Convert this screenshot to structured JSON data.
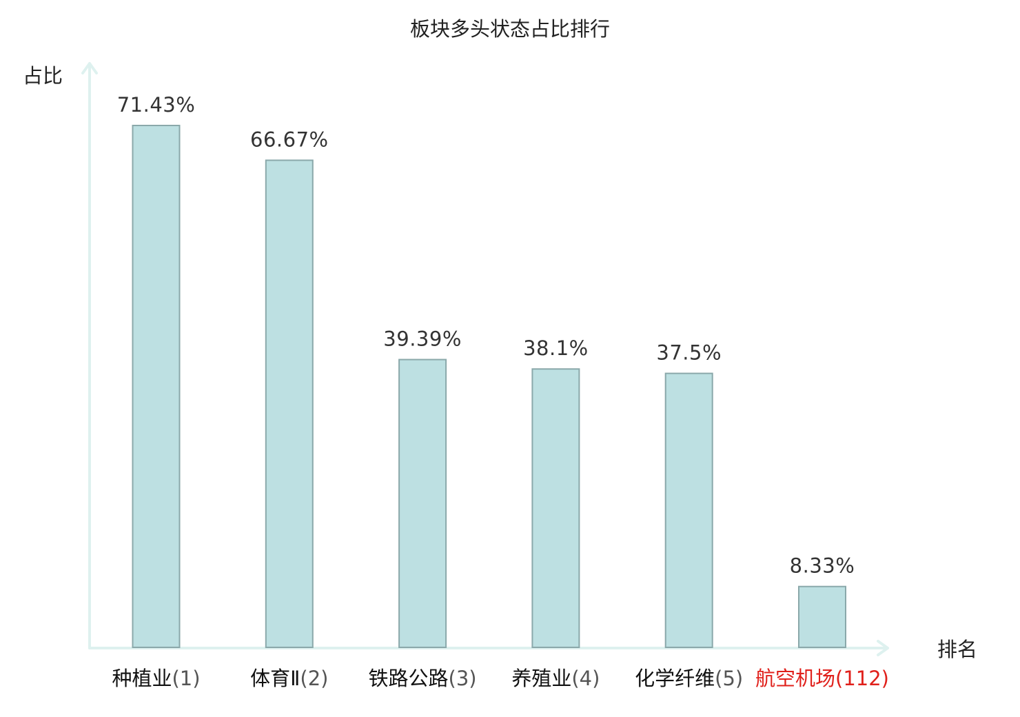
{
  "chart_data": {
    "type": "bar",
    "title": "板块多头状态占比排行",
    "ylabel": "占比",
    "xlabel": "排名",
    "categories": [
      {
        "name": "种植业",
        "rank": "(1)",
        "highlight": false
      },
      {
        "name": "体育Ⅱ",
        "rank": "(2)",
        "highlight": false
      },
      {
        "name": "铁路公路",
        "rank": "(3)",
        "highlight": false
      },
      {
        "name": "养殖业",
        "rank": "(4)",
        "highlight": false
      },
      {
        "name": "化学纤维",
        "rank": "(5)",
        "highlight": false
      },
      {
        "name": "航空机场",
        "rank": "(112)",
        "highlight": true
      }
    ],
    "values": [
      71.43,
      66.67,
      39.39,
      38.1,
      37.5,
      8.33
    ],
    "value_labels": [
      "71.43%",
      "66.67%",
      "39.39%",
      "38.1%",
      "37.5%",
      "8.33%"
    ],
    "ylim": [
      0,
      80
    ],
    "grid": false,
    "legend": "none",
    "colors": {
      "bar_fill": "#bde0e2",
      "bar_stroke": "#8aa8aa",
      "axis": "#def1ef",
      "highlight_text": "#e0201b"
    }
  }
}
